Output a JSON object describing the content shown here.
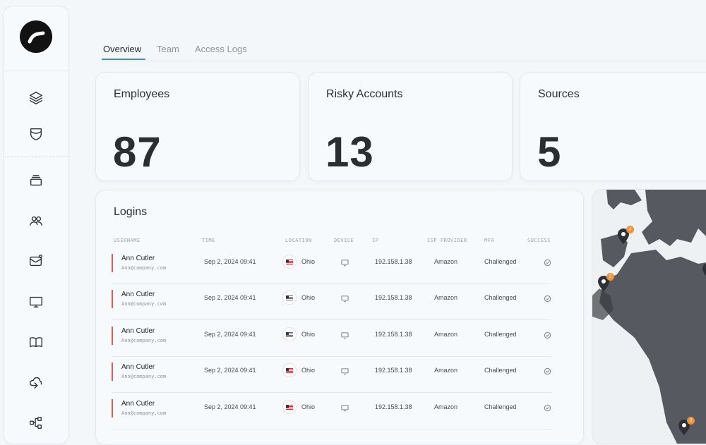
{
  "sidebar": {
    "icons": [
      "layers-icon",
      "shield-icon",
      "inbox-icon",
      "users-icon",
      "mail-badge-icon",
      "monitor-icon",
      "book-icon",
      "cloud-sync-icon",
      "workflow-icon"
    ]
  },
  "tabs": [
    {
      "label": "Overview",
      "active": true
    },
    {
      "label": "Team",
      "active": false
    },
    {
      "label": "Access Logs",
      "active": false
    }
  ],
  "stats": [
    {
      "title": "Employees",
      "value": "87"
    },
    {
      "title": "Risky Accounts",
      "value": "13"
    },
    {
      "title": "Sources",
      "value": "5"
    }
  ],
  "logins": {
    "title": "Logins",
    "columns": [
      "USERNAME",
      "TIME",
      "LOCATION",
      "DEVICE",
      "IP",
      "ISP PROVIDER",
      "MFA",
      "SUCCESS"
    ],
    "rows": [
      {
        "name": "Ann Cutler",
        "email": "Ann@company.com",
        "time": "Sep 2, 2024  09:41",
        "location": "Ohio",
        "ip": "192.158.1.38",
        "isp": "Amazon",
        "mfa": "Challenged"
      },
      {
        "name": "Ann Cutler",
        "email": "Ann@company.com",
        "time": "Sep 2, 2024  09:41",
        "location": "Ohio",
        "ip": "192.158.1.38",
        "isp": "Amazon",
        "mfa": "Challenged"
      },
      {
        "name": "Ann Cutler",
        "email": "Ann@company.com",
        "time": "Sep 2, 2024  09:41",
        "location": "Ohio",
        "ip": "192.158.1.38",
        "isp": "Amazon",
        "mfa": "Challenged"
      },
      {
        "name": "Ann Cutler",
        "email": "Ann@company.com",
        "time": "Sep 2, 2024  09:41",
        "location": "Ohio",
        "ip": "192.158.1.38",
        "isp": "Amazon",
        "mfa": "Challenged"
      },
      {
        "name": "Ann Cutler",
        "email": "Ann@company.com",
        "time": "Sep 2, 2024  09:41",
        "location": "Ohio",
        "ip": "192.158.1.38",
        "isp": "Amazon",
        "mfa": "Challenged"
      }
    ]
  },
  "map": {
    "pins": [
      {
        "badge": "4"
      },
      {
        "badge": "2"
      },
      {
        "badge": "3"
      }
    ],
    "pin_color": "#2d3035",
    "badge_color": "#f0913a"
  },
  "colors": {
    "accent": "#4f8fa6",
    "risk_bar": "#e05a5a"
  }
}
